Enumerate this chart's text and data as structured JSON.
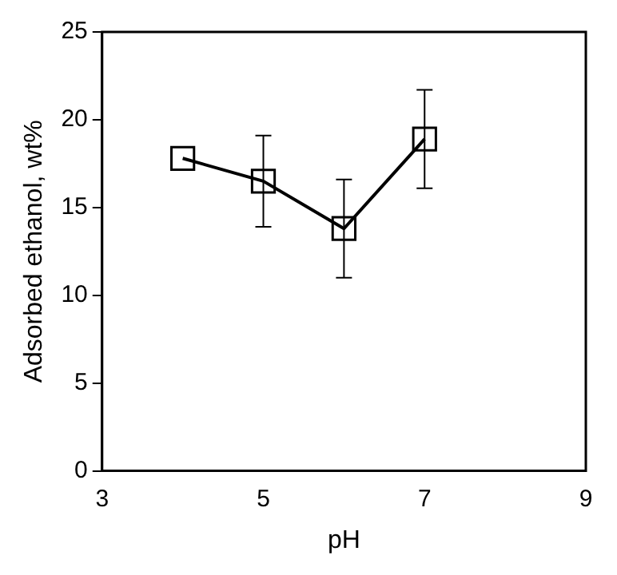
{
  "chart_data": {
    "type": "line",
    "xlabel": "pH",
    "ylabel": "Adsorbed ethanol, wt%",
    "x": [
      4,
      5,
      6,
      7
    ],
    "series": [
      {
        "color": "#000000",
        "values": [
          17.8,
          16.5,
          13.8,
          18.9
        ],
        "errors": [
          null,
          2.6,
          2.8,
          2.8
        ]
      }
    ],
    "xlim": [
      3,
      9
    ],
    "xticks": [
      3,
      5,
      7,
      9
    ],
    "ylim": [
      0,
      25
    ],
    "yticks": [
      0,
      5,
      10,
      15,
      20,
      25
    ],
    "grid": false,
    "legend": false,
    "marker": "square",
    "line_style": "solid"
  }
}
